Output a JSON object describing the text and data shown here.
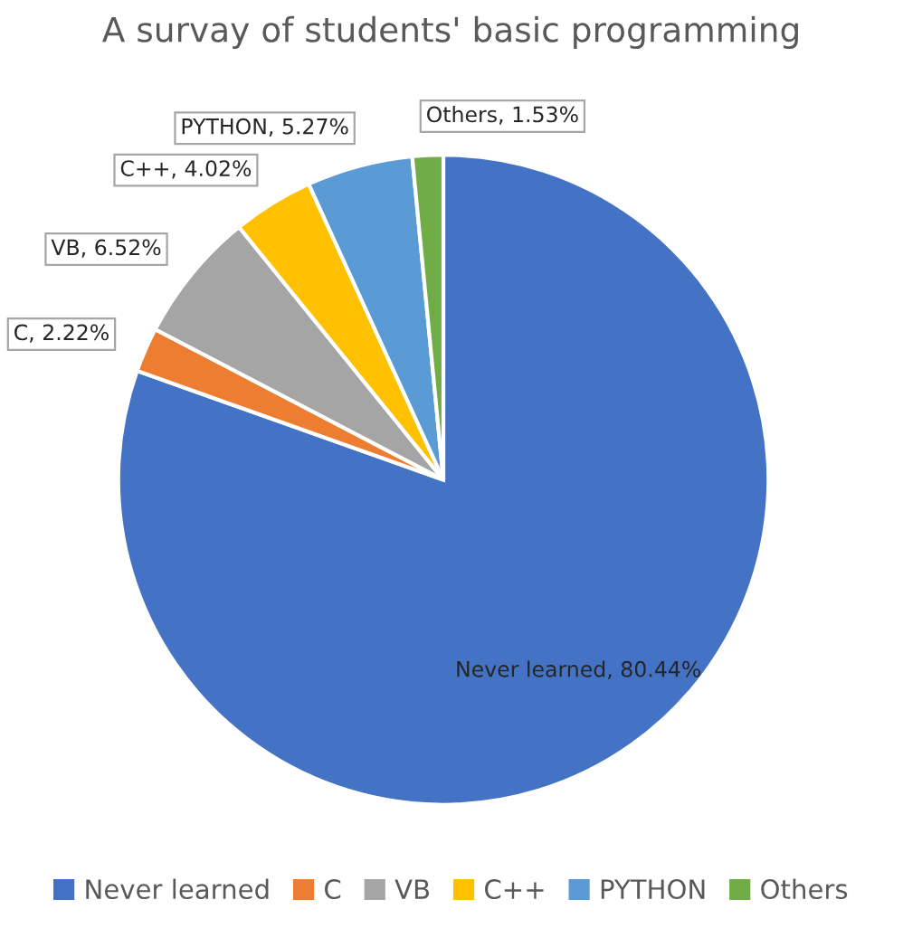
{
  "chart_data": {
    "type": "pie",
    "title": "A survay of students' basic programming",
    "categories": [
      "Never learned",
      "C",
      "VB",
      "C++",
      "PYTHON",
      "Others"
    ],
    "values": [
      80.44,
      2.22,
      6.52,
      4.02,
      5.27,
      1.53
    ],
    "colors": [
      "#4472c4",
      "#ed7d31",
      "#a5a5a5",
      "#ffc000",
      "#5b9bd5",
      "#70ad47"
    ],
    "value_labels": [
      "Never learned, 80.44%",
      "C, 2.22%",
      "VB, 6.52%",
      "C++, 4.02%",
      "PYTHON, 5.27%",
      "Others, 1.53%"
    ],
    "legend": "bottom"
  }
}
